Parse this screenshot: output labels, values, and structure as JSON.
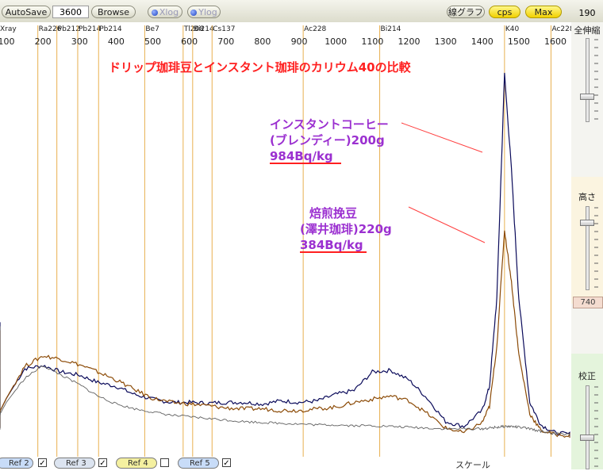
{
  "toolbar": {
    "autosave_label": "AutoSave",
    "time_value": "3600",
    "browse_label": "Browse",
    "xlog_label": "Xlog",
    "ylog_label": "Ylog",
    "graph_mode_label": "線グラフ",
    "unit_label": "cps",
    "max_label": "Max",
    "scale_value": "190"
  },
  "right_panel": {
    "full_scale_label": "全伸縮",
    "height_label": "高さ",
    "height_value": "740",
    "calib_label": "校正"
  },
  "bottom_bar": {
    "refs": [
      {
        "label": "Ref 2",
        "checked": true
      },
      {
        "label": "Ref 3",
        "checked": true
      },
      {
        "label": "Ref 4",
        "checked": false
      },
      {
        "label": "Ref 5",
        "checked": true
      }
    ],
    "scale_label": "スケール"
  },
  "chart_data": {
    "type": "line",
    "title": "ドリップ珈琲豆とインスタント珈琲のカリウム40の比較",
    "xlabel": "",
    "ylabel": "",
    "xlim": [
      0,
      1700
    ],
    "x_ticks": [
      "100",
      "200",
      "300",
      "400",
      "500",
      "600",
      "700",
      "800",
      "900",
      "1000",
      "1100",
      "1200",
      "1300",
      "1400",
      "1500",
      "1600"
    ],
    "nuclide_labels": [
      {
        "label": "Xray",
        "x": 0
      },
      {
        "label": "Ra226",
        "x": 186
      },
      {
        "label": "Pb212",
        "x": 238
      },
      {
        "label": "Pb214",
        "x": 295
      },
      {
        "label": "Pb214",
        "x": 352
      },
      {
        "label": "Be7",
        "x": 478
      },
      {
        "label": "Tl208",
        "x": 583
      },
      {
        "label": "Bi214",
        "x": 609
      },
      {
        "label": "Cs137",
        "x": 662
      },
      {
        "label": "Ac228",
        "x": 911
      },
      {
        "label": "Bi214",
        "x": 1120
      },
      {
        "label": "K40",
        "x": 1461
      },
      {
        "label": "Ac228",
        "x": 1588
      }
    ],
    "annotations": [
      {
        "lines": [
          "インスタントコーヒー",
          "(ブレンディー)200g"
        ],
        "value": "984Bq/kg"
      },
      {
        "lines": [
          "焙煎挽豆",
          "(澤井珈琲)220g"
        ],
        "value": "384Bq/kg"
      }
    ],
    "series": [
      {
        "color": "#0a0a5a",
        "x": [
          0,
          30,
          60,
          100,
          150,
          200,
          250,
          300,
          350,
          400,
          450,
          500,
          550,
          600,
          650,
          700,
          750,
          800,
          850,
          900,
          950,
          1000,
          1050,
          1100,
          1150,
          1200,
          1250,
          1300,
          1350,
          1400,
          1420,
          1440,
          1461,
          1480,
          1500,
          1530,
          1560,
          1600,
          1650,
          1700
        ],
        "y": [
          150,
          62,
          18,
          55,
          92,
          96,
          88,
          84,
          75,
          70,
          60,
          54,
          50,
          50,
          49,
          50,
          50,
          48,
          52,
          50,
          52,
          60,
          65,
          88,
          90,
          78,
          55,
          26,
          20,
          40,
          70,
          180,
          460,
          340,
          180,
          50,
          22,
          12,
          10,
          9
        ]
      },
      {
        "color": "#8b4a06",
        "x": [
          0,
          30,
          60,
          100,
          150,
          200,
          250,
          300,
          350,
          400,
          450,
          500,
          550,
          600,
          650,
          700,
          750,
          800,
          850,
          900,
          950,
          1000,
          1050,
          1100,
          1150,
          1200,
          1250,
          1300,
          1350,
          1400,
          1420,
          1440,
          1461,
          1480,
          1500,
          1530,
          1560,
          1600,
          1650,
          1700
        ],
        "y": [
          140,
          55,
          18,
          55,
          95,
          108,
          104,
          97,
          88,
          78,
          66,
          55,
          50,
          48,
          46,
          43,
          42,
          42,
          40,
          40,
          42,
          44,
          50,
          54,
          58,
          52,
          36,
          18,
          12,
          25,
          45,
          120,
          265,
          200,
          110,
          36,
          15,
          10,
          8,
          7
        ]
      },
      {
        "color": "#606060",
        "x": [
          0,
          30,
          60,
          100,
          150,
          200,
          250,
          300,
          350,
          400,
          450,
          500,
          550,
          600,
          650,
          700,
          750,
          800,
          850,
          900,
          950,
          1000,
          1050,
          1100,
          1150,
          1200,
          1250,
          1300,
          1350,
          1400,
          1420,
          1440,
          1461,
          1480,
          1500,
          1530,
          1560,
          1600,
          1650,
          1700
        ],
        "y": [
          145,
          60,
          16,
          50,
          80,
          96,
          84,
          72,
          58,
          48,
          42,
          38,
          34,
          32,
          30,
          28,
          26,
          25,
          24,
          23,
          22,
          22,
          21,
          21,
          20,
          19,
          18,
          17,
          17,
          17,
          18,
          19,
          20,
          20,
          19,
          17,
          14,
          11,
          9,
          8
        ]
      }
    ]
  }
}
